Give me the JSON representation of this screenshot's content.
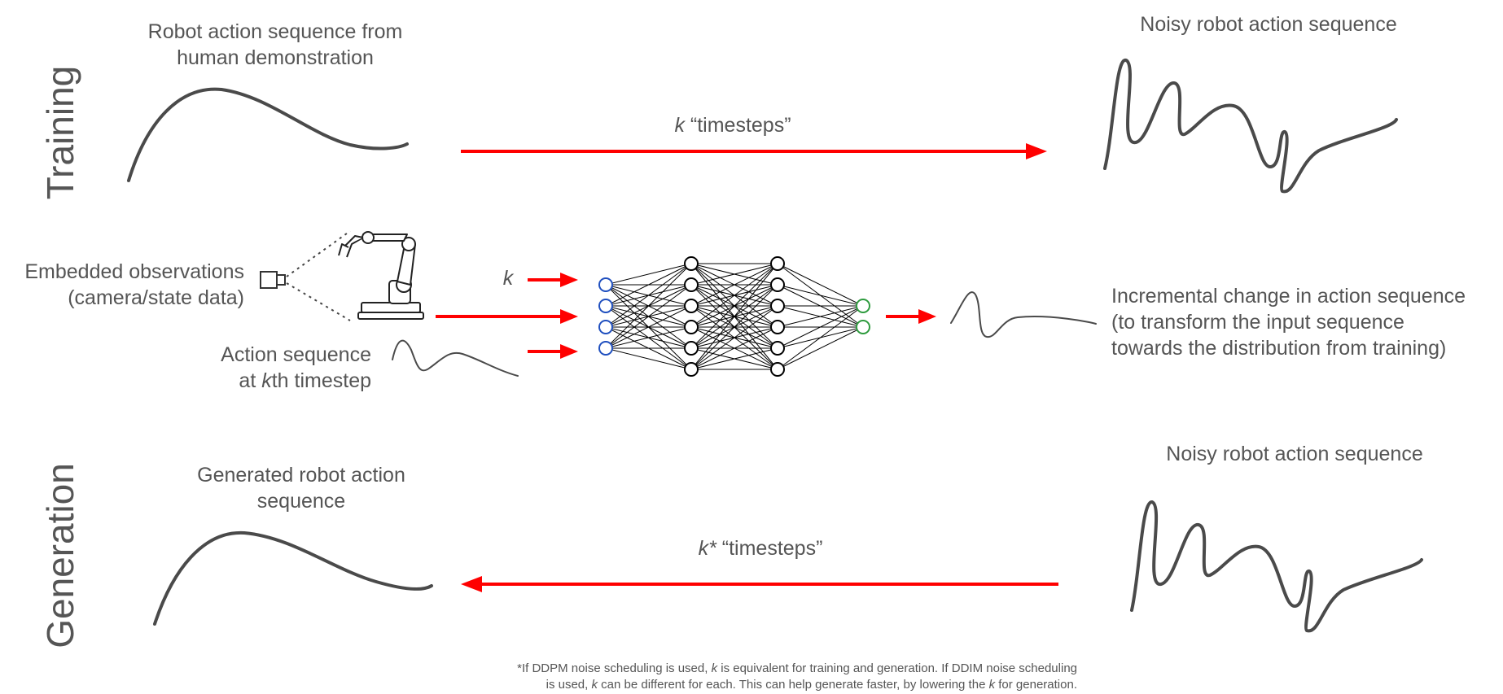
{
  "sections": {
    "training": "Training",
    "generation": "Generation"
  },
  "training": {
    "source_line1": "Robot action sequence from",
    "source_line2": "human demonstration",
    "arrow_k": "k",
    "arrow_text": " “timesteps”",
    "target": "Noisy robot action sequence"
  },
  "network": {
    "obs_line1": "Embedded observations",
    "obs_line2": "(camera/state data)",
    "k_input": "k",
    "seq_line1": "Action sequence",
    "seq_line2_pre": "at ",
    "seq_line2_k": "k",
    "seq_line2_post": "th timestep",
    "out_line1": "Incremental change in action sequence",
    "out_line2": "(to transform the input sequence",
    "out_line3": "towards the distribution from training)",
    "layers": [
      4,
      6,
      6,
      2
    ],
    "colors": {
      "input": "#1f4fbf",
      "hidden": "#000000",
      "output": "#2e9b3e"
    }
  },
  "generation": {
    "target_line1": "Generated robot action",
    "target_line2": "sequence",
    "arrow_k": "k*",
    "arrow_text": " “timesteps”",
    "source": "Noisy robot action sequence"
  },
  "footnote": {
    "l1_a": "*If DDPM noise scheduling is used, ",
    "l1_k": "k",
    "l1_b": " is equivalent for training and generation. If DDIM noise scheduling",
    "l2_a": "is used, ",
    "l2_k": "k",
    "l2_b": " can be different for each. This can help generate faster, by lowering the ",
    "l2_k2": "k",
    "l2_c": " for generation."
  },
  "colors": {
    "arrow": "#ff0000",
    "curve": "#4a4a4a",
    "text": "#555555"
  }
}
